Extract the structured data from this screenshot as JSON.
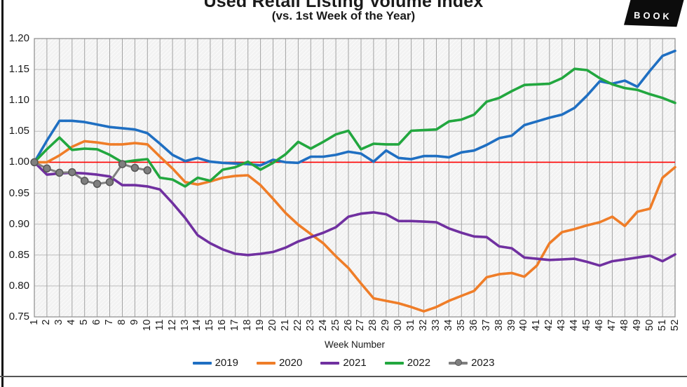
{
  "title": "Used Retail Listing Volume Index",
  "subtitle": "(vs. 1st Week of the Year)",
  "logo_text": "BOOK",
  "x_axis_title": "Week Number",
  "y_ticks": [
    "1.20",
    "1.15",
    "1.10",
    "1.05",
    "1.00",
    "0.95",
    "0.90",
    "0.85",
    "0.80",
    "0.75"
  ],
  "week_labels": [
    "1",
    "2",
    "3",
    "4",
    "5",
    "6",
    "7",
    "8",
    "9",
    "10",
    "11",
    "12",
    "13",
    "14",
    "15",
    "16",
    "17",
    "18",
    "19",
    "20",
    "21",
    "22",
    "23",
    "24",
    "25",
    "26",
    "27",
    "28",
    "29",
    "30",
    "31",
    "32",
    "33",
    "34",
    "35",
    "36",
    "37",
    "38",
    "39",
    "40",
    "41",
    "42",
    "43",
    "44",
    "45",
    "46",
    "47",
    "48",
    "49",
    "50",
    "51",
    "52"
  ],
  "colors": {
    "blue_2019": "#1F6FC2",
    "orange_2020": "#EF7D28",
    "purple_2021": "#7030A0",
    "green_2022": "#22A73F",
    "gray_2023": "#7F7F7F",
    "reference_red": "#FF0000",
    "grid_vertical": "#a2a2a2",
    "grid_horizontal": "#bdbdbd",
    "plot_background": "#f2f2f2",
    "plot_border": "#8c8c8c"
  },
  "chart_data": {
    "type": "line",
    "title": "Used Retail Listing Volume Index",
    "subtitle": "(vs. 1st Week of the Year)",
    "xlabel": "Week Number",
    "ylabel": "",
    "x_range": [
      1,
      52
    ],
    "ylim": [
      0.75,
      1.2
    ],
    "y_step": 0.05,
    "grid": true,
    "legend_position": "bottom",
    "reference_line": {
      "y": 1.0,
      "color": "#FF0000"
    },
    "series": [
      {
        "name": "2019",
        "color": "#1F6FC2",
        "marker": "none",
        "values": [
          1.0,
          1.035,
          1.067,
          1.067,
          1.065,
          1.061,
          1.057,
          1.055,
          1.053,
          1.047,
          1.03,
          1.012,
          1.002,
          1.007,
          1.001,
          0.999,
          0.998,
          0.997,
          0.995,
          1.004,
          1.0,
          0.999,
          1.009,
          1.009,
          1.012,
          1.017,
          1.014,
          1.001,
          1.019,
          1.007,
          1.005,
          1.01,
          1.01,
          1.008,
          1.016,
          1.019,
          1.028,
          1.039,
          1.043,
          1.06,
          1.066,
          1.072,
          1.077,
          1.088,
          1.108,
          1.131,
          1.127,
          1.132,
          1.122,
          1.148,
          1.172,
          1.18
        ]
      },
      {
        "name": "2020",
        "color": "#EF7D28",
        "marker": "none",
        "values": [
          1.0,
          1.0,
          1.011,
          1.025,
          1.034,
          1.032,
          1.029,
          1.029,
          1.031,
          1.029,
          1.009,
          0.99,
          0.968,
          0.964,
          0.969,
          0.975,
          0.978,
          0.979,
          0.963,
          0.941,
          0.918,
          0.899,
          0.884,
          0.869,
          0.848,
          0.829,
          0.804,
          0.78,
          0.776,
          0.772,
          0.766,
          0.759,
          0.766,
          0.776,
          0.784,
          0.792,
          0.814,
          0.819,
          0.821,
          0.815,
          0.833,
          0.869,
          0.887,
          0.892,
          0.898,
          0.903,
          0.912,
          0.897,
          0.92,
          0.925,
          0.975,
          0.992
        ]
      },
      {
        "name": "2021",
        "color": "#7030A0",
        "marker": "none",
        "values": [
          1.0,
          0.98,
          0.982,
          0.983,
          0.982,
          0.98,
          0.977,
          0.963,
          0.963,
          0.961,
          0.956,
          0.934,
          0.91,
          0.882,
          0.869,
          0.859,
          0.852,
          0.85,
          0.852,
          0.855,
          0.862,
          0.872,
          0.879,
          0.886,
          0.895,
          0.912,
          0.917,
          0.919,
          0.916,
          0.905,
          0.905,
          0.904,
          0.903,
          0.893,
          0.886,
          0.88,
          0.879,
          0.864,
          0.861,
          0.846,
          0.844,
          0.842,
          0.843,
          0.844,
          0.839,
          0.833,
          0.84,
          0.843,
          0.846,
          0.849,
          0.84,
          0.851
        ]
      },
      {
        "name": "2022",
        "color": "#22A73F",
        "marker": "none",
        "values": [
          1.0,
          1.021,
          1.04,
          1.02,
          1.022,
          1.021,
          1.012,
          1.0,
          1.003,
          1.005,
          0.975,
          0.972,
          0.961,
          0.975,
          0.97,
          0.988,
          0.992,
          1.001,
          0.988,
          0.999,
          1.013,
          1.033,
          1.022,
          1.033,
          1.045,
          1.051,
          1.021,
          1.03,
          1.029,
          1.029,
          1.051,
          1.052,
          1.053,
          1.066,
          1.069,
          1.077,
          1.098,
          1.104,
          1.115,
          1.125,
          1.126,
          1.127,
          1.136,
          1.151,
          1.149,
          1.136,
          1.126,
          1.12,
          1.117,
          1.11,
          1.104,
          1.096
        ]
      },
      {
        "name": "2023",
        "color": "#7F7F7F",
        "marker": "circle",
        "values": [
          1.0,
          0.99,
          0.983,
          0.984,
          0.97,
          0.965,
          0.968,
          0.997,
          0.991,
          0.987
        ]
      }
    ]
  }
}
